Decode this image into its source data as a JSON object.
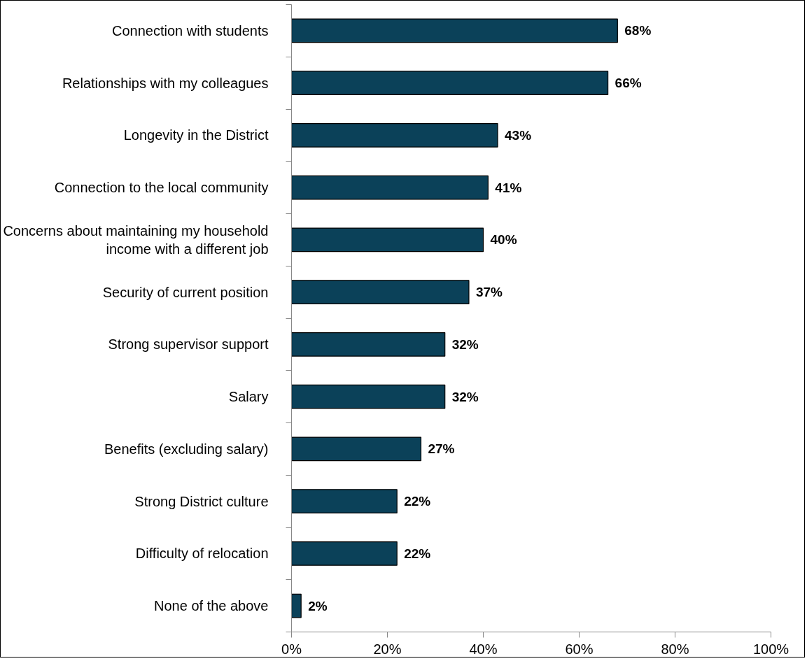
{
  "chart_data": {
    "type": "bar",
    "orientation": "horizontal",
    "categories": [
      "Connection with students",
      "Relationships with my colleagues",
      "Longevity in the District",
      "Connection to the local community",
      "Concerns about maintaining my household\nincome with a different job",
      "Security of current position",
      "Strong supervisor support",
      "Salary",
      "Benefits (excluding salary)",
      "Strong District culture",
      "Difficulty of relocation",
      "None of the above"
    ],
    "values": [
      68,
      66,
      43,
      41,
      40,
      37,
      32,
      32,
      27,
      22,
      22,
      2
    ],
    "value_labels": [
      "68%",
      "66%",
      "43%",
      "41%",
      "40%",
      "37%",
      "32%",
      "32%",
      "27%",
      "22%",
      "22%",
      "2%"
    ],
    "color": "#0b4159",
    "xlim": [
      0,
      100
    ],
    "xticks": [
      {
        "value": 0,
        "label": "0%"
      },
      {
        "value": 20,
        "label": "20%"
      },
      {
        "value": 40,
        "label": "40%"
      },
      {
        "value": 60,
        "label": "60%"
      },
      {
        "value": 80,
        "label": "80%"
      },
      {
        "value": 100,
        "label": "100%"
      }
    ],
    "grid": false
  }
}
